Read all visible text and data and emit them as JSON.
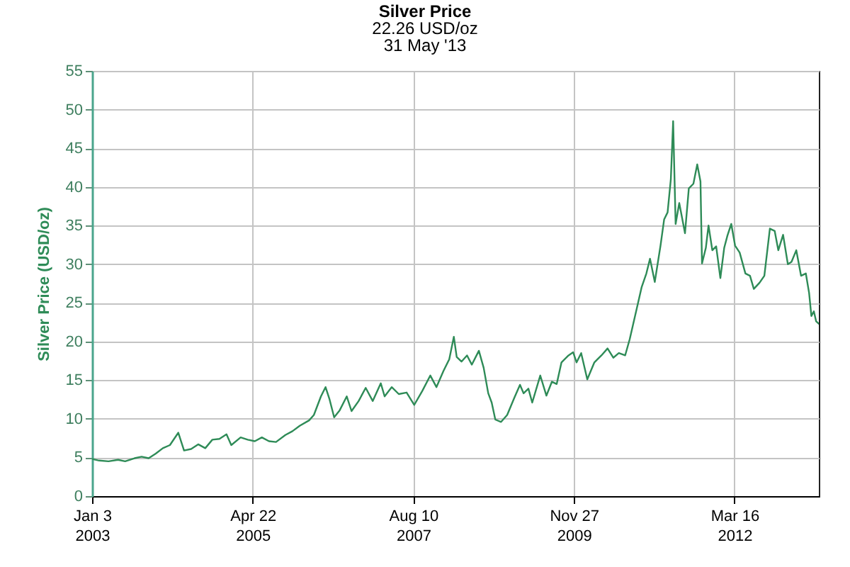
{
  "chart_data": {
    "type": "line",
    "title": "Silver Price",
    "subtitle": "22.26 USD/oz\n31 May '13",
    "ylabel": "Silver Price (USD/oz)",
    "x": [
      "2003-01-03",
      "2003-02-09",
      "2003-03-30",
      "2003-05-19",
      "2003-06-25",
      "2003-08-13",
      "2003-09-19",
      "2003-10-26",
      "2003-12-02",
      "2004-01-08",
      "2004-02-14",
      "2004-03-29",
      "2004-04-28",
      "2004-06-04",
      "2004-07-11",
      "2004-08-17",
      "2004-09-23",
      "2004-10-30",
      "2004-12-06",
      "2004-12-31",
      "2005-02-18",
      "2005-03-27",
      "2005-05-03",
      "2005-06-09",
      "2005-07-16",
      "2005-08-22",
      "2005-10-10",
      "2005-11-16",
      "2005-12-24",
      "2006-02-11",
      "2006-03-08",
      "2006-04-14",
      "2006-05-08",
      "2006-05-28",
      "2006-06-22",
      "2006-07-21",
      "2006-08-27",
      "2006-09-21",
      "2006-10-28",
      "2006-12-04",
      "2007-01-10",
      "2007-02-21",
      "2007-03-13",
      "2007-04-19",
      "2007-05-26",
      "2007-07-06",
      "2007-08-15",
      "2007-09-26",
      "2007-11-07",
      "2007-12-09",
      "2008-01-15",
      "2008-02-14",
      "2008-03-09",
      "2008-03-24",
      "2008-04-18",
      "2008-05-17",
      "2008-06-11",
      "2008-07-18",
      "2008-08-12",
      "2008-09-05",
      "2008-09-23",
      "2008-10-12",
      "2008-11-11",
      "2008-12-13",
      "2009-01-19",
      "2009-02-18",
      "2009-03-09",
      "2009-04-03",
      "2009-04-23",
      "2009-06-04",
      "2009-07-06",
      "2009-08-04",
      "2009-08-29",
      "2009-09-23",
      "2009-10-30",
      "2009-11-23",
      "2009-12-11",
      "2010-01-04",
      "2010-02-05",
      "2010-03-14",
      "2010-04-20",
      "2010-05-22",
      "2010-06-21",
      "2010-07-20",
      "2010-08-22",
      "2010-09-15",
      "2010-10-22",
      "2010-11-16",
      "2010-12-11",
      "2010-12-30",
      "2011-01-24",
      "2011-02-23",
      "2011-03-14",
      "2011-04-01",
      "2011-04-18",
      "2011-04-30",
      "2011-05-13",
      "2011-06-01",
      "2011-07-01",
      "2011-07-21",
      "2011-08-14",
      "2011-09-03",
      "2011-09-20",
      "2011-09-28",
      "2011-10-18",
      "2011-11-01",
      "2011-11-21",
      "2011-12-11",
      "2012-01-02",
      "2012-01-22",
      "2012-02-08",
      "2012-02-28",
      "2012-03-19",
      "2012-04-12",
      "2012-05-12",
      "2012-06-05",
      "2012-06-25",
      "2012-07-25",
      "2012-08-19",
      "2012-09-17",
      "2012-10-12",
      "2012-10-31",
      "2012-11-25",
      "2012-12-20",
      "2013-01-08",
      "2013-02-02",
      "2013-02-27",
      "2013-03-24",
      "2013-04-10",
      "2013-04-22",
      "2013-05-05",
      "2013-05-17",
      "2013-05-31"
    ],
    "series": [
      {
        "color": "#2e8b57",
        "values": [
          4.8,
          4.6,
          4.5,
          4.7,
          4.5,
          4.9,
          5.1,
          4.9,
          5.5,
          6.2,
          6.6,
          8.2,
          5.9,
          6.1,
          6.7,
          6.2,
          7.3,
          7.4,
          8.0,
          6.6,
          7.6,
          7.3,
          7.1,
          7.6,
          7.1,
          7.0,
          7.9,
          8.4,
          9.1,
          9.8,
          10.5,
          12.9,
          14.1,
          12.6,
          10.2,
          11.1,
          12.9,
          11.0,
          12.3,
          14.0,
          12.3,
          14.6,
          12.9,
          14.1,
          13.2,
          13.4,
          11.8,
          13.6,
          15.6,
          14.1,
          16.2,
          17.7,
          20.6,
          18.0,
          17.4,
          18.2,
          17.0,
          18.8,
          16.6,
          13.3,
          12.1,
          9.9,
          9.6,
          10.5,
          12.7,
          14.4,
          13.3,
          13.9,
          12.1,
          15.6,
          13.0,
          14.8,
          14.5,
          17.3,
          18.2,
          18.6,
          17.3,
          18.5,
          15.1,
          17.3,
          18.2,
          19.1,
          17.9,
          18.5,
          18.2,
          20.3,
          24.3,
          27.0,
          28.8,
          30.7,
          27.7,
          32.4,
          35.8,
          36.7,
          41.0,
          48.5,
          35.2,
          37.9,
          34.0,
          39.8,
          40.4,
          42.9,
          40.7,
          30.1,
          32.1,
          35.0,
          31.8,
          32.3,
          28.2,
          32.1,
          33.7,
          35.2,
          32.4,
          31.5,
          28.8,
          28.5,
          26.8,
          27.6,
          28.5,
          34.6,
          34.3,
          31.8,
          33.8,
          30.0,
          30.3,
          31.8,
          28.5,
          28.8,
          26.3,
          23.3,
          23.9,
          22.6,
          22.3
        ]
      }
    ],
    "xlim": [
      "2003-01-03",
      "2013-05-31"
    ],
    "xticks": [
      {
        "value": "2003-01-03",
        "label": "Jan 3\n2003"
      },
      {
        "value": "2005-04-22",
        "label": "Apr 22\n2005"
      },
      {
        "value": "2007-08-10",
        "label": "Aug 10\n2007"
      },
      {
        "value": "2009-11-27",
        "label": "Nov 27\n2009"
      },
      {
        "value": "2012-03-16",
        "label": "Mar 16\n2012"
      }
    ],
    "ylim": [
      0,
      55
    ],
    "yticks": [
      0,
      5,
      10,
      15,
      20,
      25,
      30,
      35,
      40,
      45,
      50,
      55
    ],
    "grid": true
  }
}
